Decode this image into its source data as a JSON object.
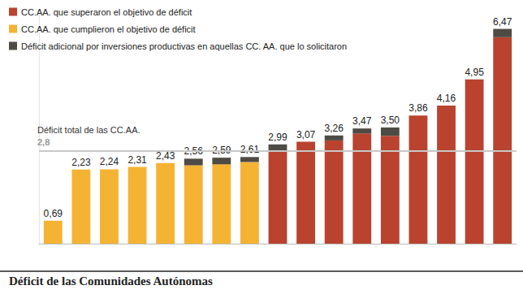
{
  "chart_data": {
    "type": "bar",
    "title": "Déficit de las Comunidades Autónomas",
    "categories": [
      null,
      null,
      null,
      null,
      null,
      null,
      null,
      null,
      null,
      null,
      null,
      null,
      null,
      null,
      null,
      null,
      null
    ],
    "series": [
      {
        "name": "CC.AA. que superaron el objetivo de déficit",
        "color": "#b9432f",
        "values": [
          null,
          null,
          null,
          null,
          null,
          null,
          null,
          null,
          2.79,
          3.07,
          3.11,
          3.32,
          3.25,
          3.86,
          4.16,
          4.95,
          6.22
        ]
      },
      {
        "name": "CC.AA. que cumplieron el objetivo de déficit",
        "color": "#f5b333",
        "values": [
          0.69,
          2.23,
          2.24,
          2.31,
          2.43,
          2.36,
          2.39,
          2.46,
          null,
          null,
          null,
          null,
          null,
          null,
          null,
          null,
          null
        ]
      },
      {
        "name": "Déficit adicional por inversiones productivas en aquellas CC. AA. que lo solicitaron",
        "color": "#4d4b43",
        "values": [
          null,
          null,
          null,
          null,
          null,
          0.2,
          0.2,
          0.15,
          0.2,
          null,
          0.15,
          0.15,
          0.25,
          null,
          null,
          null,
          0.25
        ]
      }
    ],
    "value_labels": [
      "0,69",
      "2,23",
      "2,24",
      "2,31",
      "2,43",
      "2,56",
      "2,59",
      "2,61",
      "2,99",
      "3,07",
      "3,26",
      "3,47",
      "3,50",
      "3,86",
      "4,16",
      "4,95",
      "6,47"
    ],
    "annotations": [
      {
        "text": "Déficit total de las CC.AA.",
        "y": 2.8,
        "label": "2,8"
      }
    ],
    "ylim": [
      0,
      6.9
    ],
    "yticks": [],
    "stacked": true,
    "data_labels": true,
    "legend": "top-left",
    "grid": false,
    "tick_labels": false
  }
}
